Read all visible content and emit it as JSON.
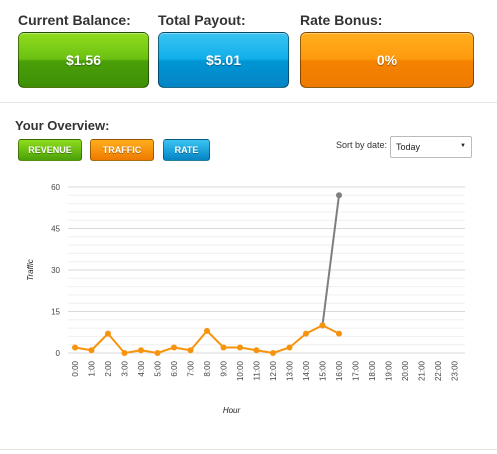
{
  "stats": {
    "balance": {
      "label": "Current Balance:",
      "value": "$1.56",
      "color": "#5cb30f"
    },
    "payout": {
      "label": "Total Payout:",
      "value": "$5.01",
      "color": "#0aa2e2"
    },
    "bonus": {
      "label": "Rate Bonus:",
      "value": "0%",
      "color": "#f78c05"
    }
  },
  "overview": {
    "title": "Your Overview:",
    "buttons": {
      "revenue": "REVENUE",
      "traffic": "TRAFFIC",
      "rate": "RATE"
    },
    "sort": {
      "label": "Sort by date:",
      "selected": "Today"
    }
  },
  "chart_data": {
    "type": "line",
    "xlabel": "Hour",
    "ylabel": "Traffic",
    "ylim": [
      0,
      60
    ],
    "yticks": [
      0,
      15,
      30,
      45,
      60
    ],
    "grid": true,
    "categories": [
      "0:00",
      "1:00",
      "2:00",
      "3:00",
      "4:00",
      "5:00",
      "6:00",
      "7:00",
      "8:00",
      "9:00",
      "10:00",
      "11:00",
      "12:00",
      "13:00",
      "14:00",
      "15:00",
      "16:00",
      "17:00",
      "18:00",
      "19:00",
      "20:00",
      "21:00",
      "22:00",
      "23:00"
    ],
    "series": [
      {
        "values": [
          2,
          1,
          7,
          0,
          1,
          0,
          2,
          1,
          8,
          2,
          2,
          1,
          0,
          2,
          7,
          10,
          7,
          null,
          null,
          null,
          null,
          null,
          null,
          null
        ],
        "color": "#f7940d"
      },
      {
        "values": [
          null,
          null,
          null,
          null,
          null,
          null,
          null,
          null,
          null,
          null,
          null,
          null,
          null,
          null,
          null,
          10,
          57,
          null,
          null,
          null,
          null,
          null,
          null,
          null
        ],
        "color": "#7f7f7f"
      }
    ]
  }
}
